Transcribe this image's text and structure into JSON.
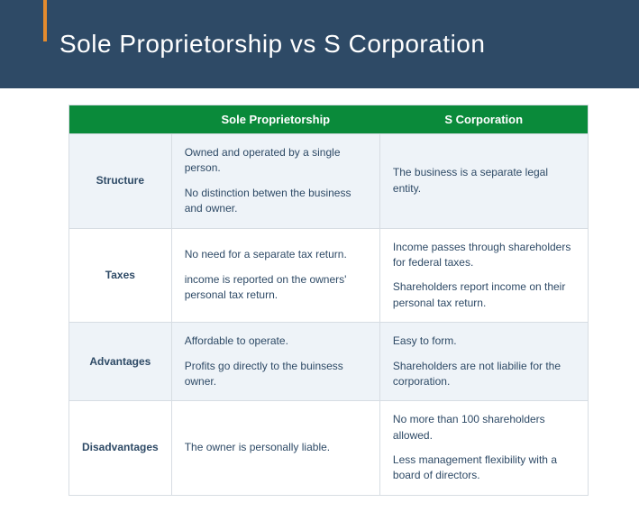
{
  "header": {
    "title": "Sole Proprietorship vs S Corporation",
    "bg_color": "#2e4a66",
    "accent_color": "#e48b2e",
    "title_color": "#ffffff",
    "title_fontsize": 28
  },
  "table": {
    "header_bg": "#0a8a3a",
    "header_color": "#ffffff",
    "row_alt_bg": "#eef3f8",
    "border_color": "#d7dde3",
    "text_color": "#2e4a66",
    "fontsize": 12,
    "columns": [
      "",
      "Sole Proprietorship",
      "S Corporation"
    ],
    "rows": [
      {
        "label": "Structure",
        "sole": [
          "Owned and operated by a single person.",
          "No distinction betwen the business and owner."
        ],
        "scorp": [
          "The business is a separate legal entity."
        ]
      },
      {
        "label": "Taxes",
        "sole": [
          "No need for a separate tax return.",
          "income is reported on the owners' personal tax return."
        ],
        "scorp": [
          "Income passes through shareholders for federal taxes.",
          "Shareholders report income on their personal tax return."
        ]
      },
      {
        "label": "Advantages",
        "sole": [
          "Affordable to operate.",
          "Profits go directly to the buinsess owner."
        ],
        "scorp": [
          "Easy to form.",
          "Shareholders are not liabilie for the corporation."
        ]
      },
      {
        "label": "Disadvantages",
        "sole": [
          "The owner is personally liable."
        ],
        "scorp": [
          "No more than 100 shareholders allowed.",
          "Less management flexibility with a board of directors."
        ]
      }
    ]
  }
}
